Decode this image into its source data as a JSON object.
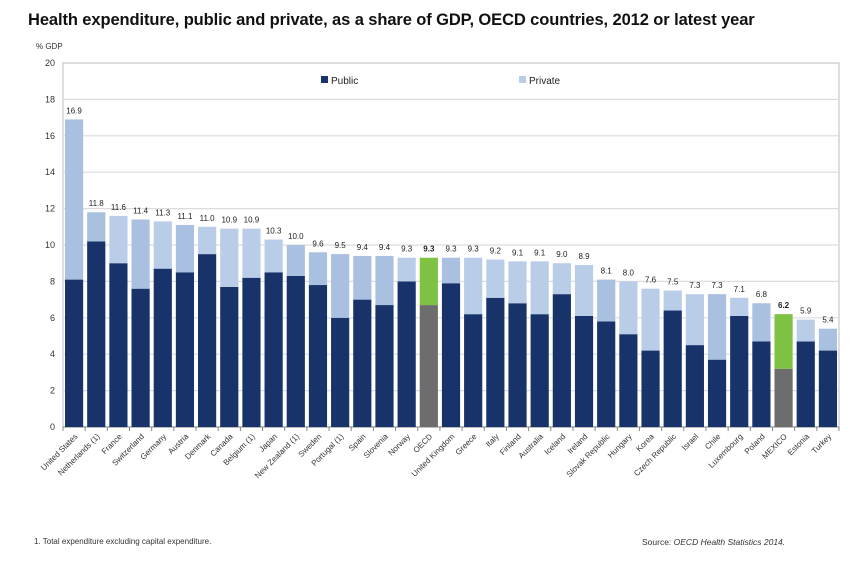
{
  "chart_data": {
    "type": "bar",
    "stacked": true,
    "title": "Health expenditure, public and private, as a share of GDP, OECD countries, 2012 or latest year",
    "ylabel": "% GDP",
    "xlabel": "",
    "ylim": [
      0,
      20
    ],
    "yticks": [
      0,
      2,
      4,
      6,
      8,
      10,
      12,
      14,
      16,
      18,
      20
    ],
    "grid": true,
    "legend_position": "top-center",
    "categories": [
      "United States",
      "Netherlands (1)",
      "France",
      "Switzerland",
      "Germany",
      "Austria",
      "Denmark",
      "Canada",
      "Belgium (1)",
      "Japan",
      "New Zealand (1)",
      "Sweden",
      "Portugal (1)",
      "Spain",
      "Slovenia",
      "Norway",
      "OECD",
      "United Kingdom",
      "Greece",
      "Italy",
      "Finland",
      "Australia",
      "Iceland",
      "Ireland",
      "Slovak Republic",
      "Hungary",
      "Korea",
      "Czech Republic",
      "Israel",
      "Chile",
      "Luxembourg",
      "Poland",
      "MEXICO",
      "Estonia",
      "Turkey"
    ],
    "totals": [
      16.9,
      11.8,
      11.6,
      11.4,
      11.3,
      11.1,
      11.0,
      10.9,
      10.9,
      10.3,
      10.0,
      9.6,
      9.5,
      9.4,
      9.4,
      9.3,
      9.3,
      9.3,
      9.3,
      9.2,
      9.1,
      9.1,
      9.0,
      8.9,
      8.1,
      8.0,
      7.6,
      7.5,
      7.3,
      7.3,
      7.1,
      6.8,
      6.2,
      5.9,
      5.4
    ],
    "total_labels": [
      "16.9",
      "11.8",
      "11.6",
      "11.4",
      "11.3",
      "11.1",
      "11.0",
      "10.9",
      "10.9",
      "10.3",
      "10.0",
      "9.6",
      "9.5",
      "9.4",
      "9.4",
      "9.3",
      "9.3",
      "9.3",
      "9.3",
      "9.2",
      "9.1",
      "9.1",
      "9.0",
      "8.9",
      "8.1",
      "8.0",
      "7.6",
      "7.5",
      "7.3",
      "7.3",
      "7.1",
      "6.8",
      "6.2",
      "5.9",
      "5.4"
    ],
    "series": [
      {
        "name": "Public",
        "color": "#17336a",
        "values": [
          8.1,
          10.2,
          9.0,
          7.6,
          8.7,
          8.5,
          9.5,
          7.7,
          8.2,
          8.5,
          8.3,
          7.8,
          6.0,
          7.0,
          6.7,
          8.0,
          6.7,
          7.9,
          6.2,
          7.1,
          6.8,
          6.2,
          7.3,
          6.1,
          5.8,
          5.1,
          4.2,
          6.4,
          4.5,
          3.7,
          6.1,
          4.7,
          3.2,
          4.7,
          4.2
        ]
      },
      {
        "name": "Private",
        "color": "#b9cde9",
        "values": [
          8.8,
          1.6,
          2.6,
          3.8,
          2.6,
          2.6,
          1.5,
          3.2,
          2.7,
          1.8,
          1.7,
          1.8,
          3.5,
          2.4,
          2.7,
          1.3,
          2.6,
          1.4,
          3.1,
          2.1,
          2.3,
          2.9,
          1.7,
          2.8,
          2.3,
          2.9,
          3.4,
          1.1,
          2.8,
          3.6,
          1.0,
          2.1,
          3.0,
          1.2,
          1.2
        ]
      }
    ],
    "private_shades": [
      "#a9c0e0",
      "#a9c0e0",
      "#b9cde9",
      "#a9c0e0",
      "#b9cde9",
      "#a9c0e0",
      "#b9cde9",
      "#b9cde9",
      "#b9cde9",
      "#b9cde9",
      "#a9c0e0",
      "#a9c0e0",
      "#a9c0e0",
      "#a9c0e0",
      "#a9c0e0",
      "#b9cde9",
      "#7dc242",
      "#a9c0e0",
      "#b9cde9",
      "#b9cde9",
      "#b9cde9",
      "#b9cde9",
      "#b9cde9",
      "#b9cde9",
      "#a9c0e0",
      "#b9cde9",
      "#b9cde9",
      "#b9cde9",
      "#b9cde9",
      "#a9c0e0",
      "#b9cde9",
      "#a9c0e0",
      "#7dc242",
      "#b9cde9",
      "#a9c0e0"
    ],
    "highlight": {
      "categories": [
        "OECD",
        "MEXICO"
      ],
      "public_color": "#6d6d6d",
      "private_color": "#7dc242"
    },
    "bold_labels": [
      "OECD",
      "MEXICO"
    ]
  },
  "footnote": "1. Total expenditure excluding capital expenditure.",
  "source_prefix": "Source: ",
  "source_italic": "OECD Health Statistics 2014."
}
